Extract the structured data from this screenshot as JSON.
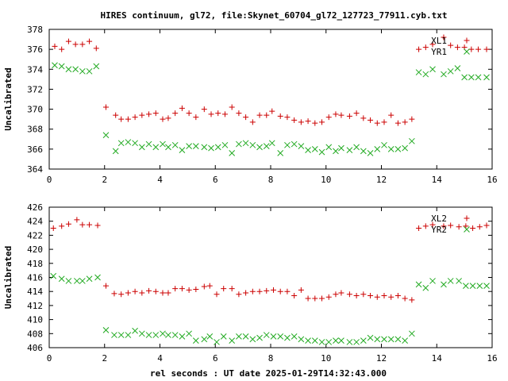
{
  "title": "HIRES continuum, gl72, file:Skynet_60704_gl72_127723_77911.cyb.txt",
  "xlabel": "rel seconds : UT date 2025-01-29T14:32:43.000",
  "colors": {
    "red": "#cc0000",
    "green": "#22aa22"
  },
  "chart_data": [
    {
      "type": "scatter",
      "ylabel": "Uncalibrated",
      "xlim": [
        0,
        16
      ],
      "ylim": [
        364,
        378
      ],
      "xticks": [
        "0",
        "2",
        "4",
        "6",
        "8",
        "10",
        "12",
        "14",
        "16"
      ],
      "yticks": [
        "364",
        "366",
        "368",
        "370",
        "372",
        "374",
        "376",
        "378"
      ],
      "legend_position": "top-right",
      "x": [
        0.2,
        0.45,
        0.7,
        0.95,
        1.2,
        1.45,
        1.7,
        2.05,
        2.4,
        2.6,
        2.85,
        3.1,
        3.35,
        3.6,
        3.85,
        4.1,
        4.3,
        4.55,
        4.8,
        5.05,
        5.3,
        5.6,
        5.85,
        6.1,
        6.35,
        6.6,
        6.85,
        7.1,
        7.35,
        7.6,
        7.85,
        8.05,
        8.35,
        8.6,
        8.85,
        9.1,
        9.35,
        9.6,
        9.85,
        10.1,
        10.35,
        10.55,
        10.85,
        11.1,
        11.35,
        11.6,
        11.85,
        12.1,
        12.35,
        12.6,
        12.85,
        13.1,
        13.35,
        13.6,
        13.85,
        14.25,
        14.5,
        14.75,
        15.0,
        15.25,
        15.5,
        15.8
      ],
      "series": [
        {
          "name": "XL1",
          "marker": "+",
          "color": "red",
          "values": [
            376.3,
            376.0,
            376.8,
            376.5,
            376.5,
            376.8,
            376.1,
            370.2,
            369.4,
            369.0,
            369.0,
            369.2,
            369.4,
            369.5,
            369.6,
            369.0,
            369.1,
            369.6,
            370.1,
            369.6,
            369.2,
            370.0,
            369.5,
            369.6,
            369.5,
            370.2,
            369.6,
            369.2,
            368.7,
            369.4,
            369.4,
            369.8,
            369.3,
            369.2,
            368.9,
            368.7,
            368.8,
            368.6,
            368.7,
            369.2,
            369.5,
            369.4,
            369.3,
            369.6,
            369.1,
            368.9,
            368.6,
            368.7,
            369.4,
            368.6,
            368.7,
            369.0,
            376.0,
            376.2,
            376.5,
            377.2,
            376.4,
            376.2,
            376.2,
            376.0,
            376.0,
            376.0
          ]
        },
        {
          "name": "YR1",
          "marker": "x",
          "color": "green",
          "values": [
            374.4,
            374.3,
            374.0,
            374.0,
            373.8,
            373.8,
            374.3,
            367.4,
            365.8,
            366.6,
            366.7,
            366.6,
            366.2,
            366.5,
            366.2,
            366.5,
            366.2,
            366.4,
            365.9,
            366.3,
            366.3,
            366.2,
            366.1,
            366.2,
            366.4,
            365.6,
            366.5,
            366.6,
            366.4,
            366.2,
            366.3,
            366.6,
            365.6,
            366.4,
            366.5,
            366.3,
            365.9,
            366.0,
            365.7,
            366.2,
            365.8,
            366.1,
            365.9,
            366.2,
            365.8,
            365.6,
            366.0,
            366.4,
            366.0,
            366.0,
            366.1,
            366.8,
            373.7,
            373.5,
            374.0,
            373.5,
            373.8,
            374.1,
            373.2,
            373.2,
            373.2,
            373.2
          ]
        }
      ]
    },
    {
      "type": "scatter",
      "ylabel": "Uncalibrated",
      "xlim": [
        0,
        16
      ],
      "ylim": [
        406,
        426
      ],
      "xticks": [
        "0",
        "2",
        "4",
        "6",
        "8",
        "10",
        "12",
        "14",
        "16"
      ],
      "yticks": [
        "406",
        "408",
        "410",
        "412",
        "414",
        "416",
        "418",
        "420",
        "422",
        "424",
        "426"
      ],
      "legend_position": "top-right",
      "x": [
        0.15,
        0.45,
        0.7,
        1.0,
        1.2,
        1.45,
        1.75,
        2.05,
        2.35,
        2.6,
        2.85,
        3.1,
        3.35,
        3.6,
        3.85,
        4.1,
        4.3,
        4.55,
        4.8,
        5.05,
        5.3,
        5.6,
        5.8,
        6.05,
        6.3,
        6.6,
        6.85,
        7.1,
        7.35,
        7.6,
        7.85,
        8.1,
        8.35,
        8.6,
        8.85,
        9.1,
        9.35,
        9.6,
        9.85,
        10.1,
        10.35,
        10.55,
        10.85,
        11.1,
        11.35,
        11.6,
        11.85,
        12.1,
        12.35,
        12.6,
        12.85,
        13.1,
        13.35,
        13.6,
        13.85,
        14.25,
        14.5,
        14.8,
        15.05,
        15.3,
        15.55,
        15.8
      ],
      "series": [
        {
          "name": "XL2",
          "marker": "+",
          "color": "red",
          "values": [
            423.0,
            423.3,
            423.6,
            424.2,
            423.5,
            423.5,
            423.4,
            414.8,
            413.7,
            413.6,
            413.8,
            414.0,
            413.8,
            414.1,
            414.0,
            413.8,
            413.8,
            414.4,
            414.4,
            414.2,
            414.3,
            414.7,
            414.8,
            413.6,
            414.4,
            414.4,
            413.6,
            413.8,
            414.0,
            414.0,
            414.1,
            414.2,
            414.0,
            414.0,
            413.4,
            414.2,
            413.0,
            413.0,
            413.0,
            413.2,
            413.6,
            413.8,
            413.6,
            413.4,
            413.6,
            413.4,
            413.2,
            413.4,
            413.2,
            413.4,
            413.0,
            412.8,
            423.0,
            423.3,
            423.5,
            423.3,
            423.4,
            423.2,
            423.3,
            423.0,
            423.2,
            423.4
          ]
        },
        {
          "name": "YR2",
          "marker": "x",
          "color": "green",
          "values": [
            416.2,
            415.8,
            415.5,
            415.5,
            415.5,
            415.8,
            416.0,
            408.5,
            407.8,
            407.8,
            407.8,
            408.4,
            408.0,
            407.8,
            407.8,
            408.0,
            407.8,
            407.8,
            407.6,
            408.0,
            407.0,
            407.2,
            407.6,
            406.8,
            407.6,
            407.0,
            407.6,
            407.6,
            407.2,
            407.4,
            407.8,
            407.6,
            407.6,
            407.4,
            407.6,
            407.2,
            407.0,
            407.0,
            406.8,
            406.8,
            407.0,
            407.0,
            406.8,
            406.8,
            407.0,
            407.4,
            407.2,
            407.2,
            407.2,
            407.2,
            407.0,
            408.0,
            415.0,
            414.5,
            415.5,
            415.0,
            415.5,
            415.5,
            414.8,
            414.8,
            414.8,
            414.8
          ]
        }
      ]
    }
  ]
}
